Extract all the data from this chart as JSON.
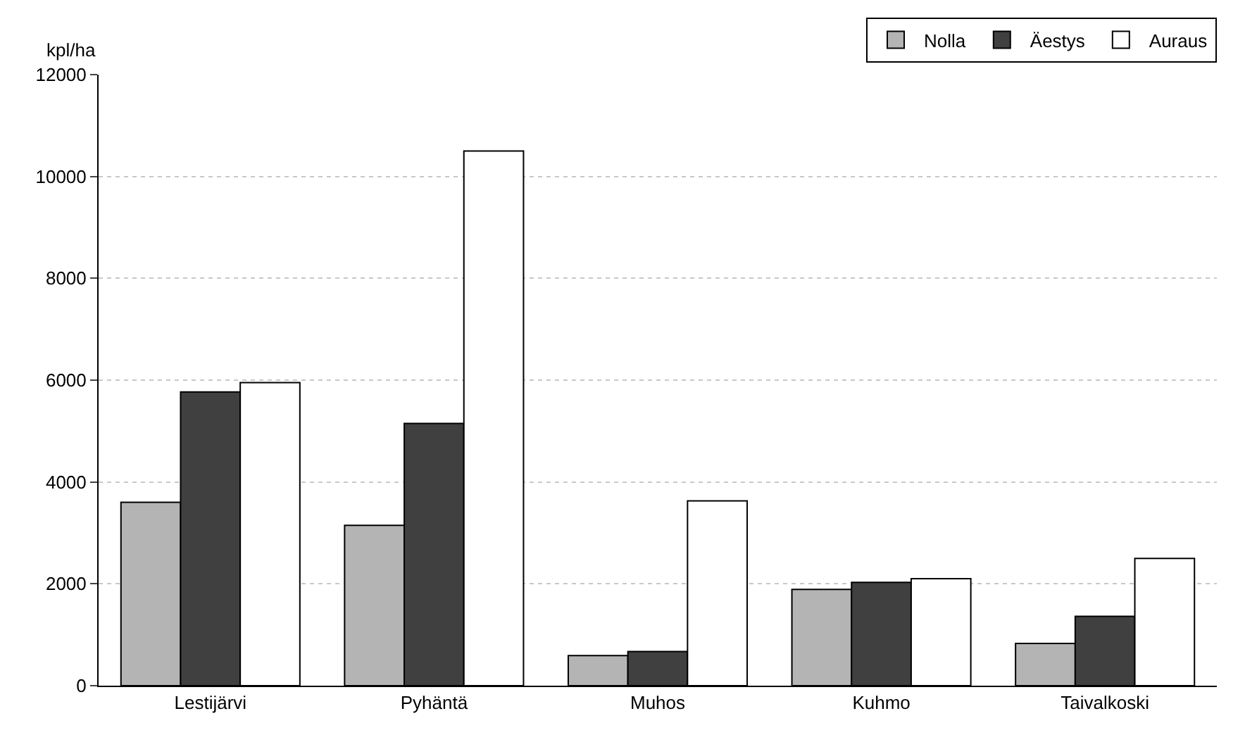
{
  "chart_data": {
    "type": "bar",
    "ylabel": "kpl/ha",
    "categories": [
      "Lestijärvi",
      "Pyhäntä",
      "Muhos",
      "Kuhmo",
      "Taivalkoski"
    ],
    "series": [
      {
        "name": "Nolla",
        "color": "#b4b4b4",
        "values": [
          3600,
          3150,
          590,
          1890,
          830
        ]
      },
      {
        "name": "Äestys",
        "color": "#404040",
        "values": [
          5770,
          5150,
          670,
          2030,
          1360
        ]
      },
      {
        "name": "Auraus",
        "color": "#ffffff",
        "values": [
          5950,
          10500,
          3630,
          2100,
          2500
        ]
      }
    ],
    "ylim": [
      0,
      12000
    ],
    "yticks": [
      0,
      2000,
      4000,
      6000,
      8000,
      10000,
      12000
    ],
    "grid": "y",
    "legend": "top right"
  }
}
